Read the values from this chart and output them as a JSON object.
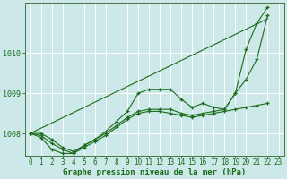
{
  "title": "Graphe pression niveau de la mer (hPa)",
  "bg_color": "#cce8e8",
  "grid_color": "#ffffff",
  "line_color": "#1a6b1a",
  "xlim": [
    -0.5,
    23.5
  ],
  "ylim": [
    1007.45,
    1011.25
  ],
  "yticks": [
    1008,
    1009,
    1010
  ],
  "xticks": [
    0,
    1,
    2,
    3,
    4,
    5,
    6,
    7,
    8,
    9,
    10,
    11,
    12,
    13,
    14,
    15,
    16,
    17,
    18,
    19,
    20,
    21,
    22,
    23
  ],
  "series": [
    [
      1008.0,
      1007.95,
      1007.75,
      1007.6,
      1007.5,
      1007.7,
      1007.85,
      1008.05,
      1008.3,
      1008.55,
      1009.0,
      1009.1,
      1009.1,
      1009.1,
      1008.85,
      1008.65,
      1008.75,
      1008.65,
      1008.6,
      1009.0,
      1010.1,
      1010.75,
      1011.15
    ],
    [
      1008.0,
      1007.9,
      1007.6,
      1007.5,
      1007.5,
      1007.65,
      1007.8,
      1007.95,
      1008.15,
      1008.35,
      1008.5,
      1008.55,
      1008.55,
      1008.5,
      1008.45,
      1008.4,
      1008.45,
      1008.5,
      1008.55,
      1008.6,
      1008.65,
      1008.7,
      1008.75
    ],
    [
      1008.0,
      1008.0,
      1007.85,
      1007.65,
      1007.55,
      1007.7,
      1007.85,
      1008.0,
      1008.2,
      1008.4,
      1008.55,
      1008.6,
      1008.6,
      1008.6,
      1008.5,
      1008.45,
      1008.5,
      1008.55,
      1008.6,
      1009.0,
      1009.35,
      1009.85,
      1010.95
    ],
    [
      1008.0,
      1008.13,
      1008.26,
      1008.39,
      1008.52,
      1008.65,
      1008.78,
      1008.91,
      1009.04,
      1009.17,
      1009.3,
      1009.43,
      1009.56,
      1009.69,
      1009.82,
      1009.95,
      1010.08,
      1010.21,
      1010.34,
      1010.47,
      1010.6,
      1010.73,
      1010.86
    ]
  ],
  "series_x": [
    [
      0,
      1,
      2,
      3,
      4,
      5,
      6,
      7,
      8,
      9,
      10,
      11,
      12,
      13,
      14,
      15,
      16,
      17,
      18,
      19,
      20,
      21,
      22
    ],
    [
      0,
      1,
      2,
      3,
      4,
      5,
      6,
      7,
      8,
      9,
      10,
      11,
      12,
      13,
      14,
      15,
      16,
      17,
      18,
      19,
      20,
      21,
      22
    ],
    [
      0,
      1,
      2,
      3,
      4,
      5,
      6,
      7,
      8,
      9,
      10,
      11,
      12,
      13,
      14,
      15,
      16,
      17,
      18,
      19,
      20,
      21,
      22
    ],
    [
      0,
      1,
      2,
      3,
      4,
      5,
      6,
      7,
      8,
      9,
      10,
      11,
      12,
      13,
      14,
      15,
      16,
      17,
      18,
      19,
      20,
      21,
      22
    ]
  ],
  "use_markers": [
    true,
    true,
    true,
    false
  ],
  "tick_fontsize": 5.5,
  "xlabel_fontsize": 6.5,
  "spine_color": "#447744"
}
